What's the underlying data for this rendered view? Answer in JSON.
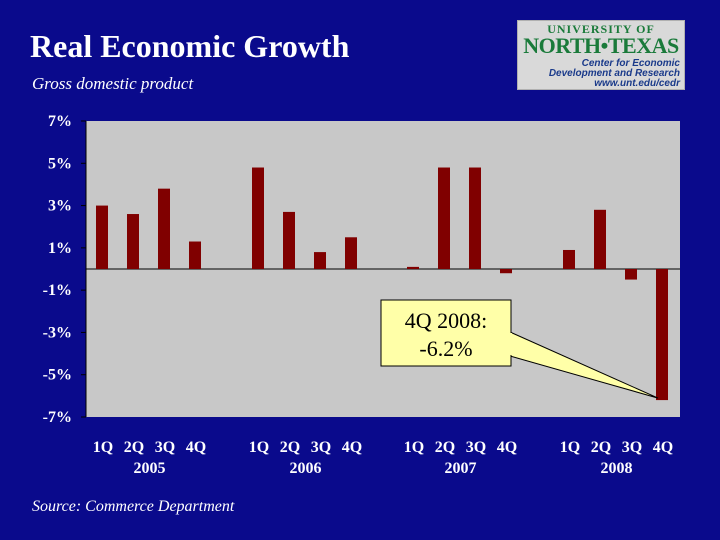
{
  "title": "Real Economic Growth",
  "subtitle": "Gross domestic product",
  "source": "Source: Commerce Department",
  "logo": {
    "line1": "UNIVERSITY OF",
    "line2": "NORTH•TEXAS",
    "line3": "Center for Economic",
    "line4": "Development and Research",
    "line5": "www.unt.edu/cedr"
  },
  "colors": {
    "background": "#0a0a8c",
    "plot_area": "#c8c8c8",
    "bar": "#800000",
    "callout": "#ffffa8"
  },
  "annotation": {
    "line1": "4Q 2008:",
    "line2": "-6.2%"
  },
  "chart_data": {
    "type": "bar",
    "title": "Real Economic Growth",
    "subtitle": "Gross domestic product",
    "ylim": [
      -7,
      7
    ],
    "yticks": [
      7,
      5,
      3,
      1,
      -1,
      -3,
      -5,
      -7
    ],
    "ytick_labels": [
      "7%",
      "5%",
      "3%",
      "1%",
      "-1%",
      "-3%",
      "-5%",
      "-7%"
    ],
    "grid": false,
    "groups": [
      {
        "year": "2005",
        "quarters": [
          "1Q",
          "2Q",
          "3Q",
          "4Q"
        ],
        "values": [
          3.0,
          2.6,
          3.8,
          1.3
        ]
      },
      {
        "year": "2006",
        "quarters": [
          "1Q",
          "2Q",
          "3Q",
          "4Q"
        ],
        "values": [
          4.8,
          2.7,
          0.8,
          1.5
        ]
      },
      {
        "year": "2007",
        "quarters": [
          "1Q",
          "2Q",
          "3Q",
          "4Q"
        ],
        "values": [
          0.1,
          4.8,
          4.8,
          -0.2
        ]
      },
      {
        "year": "2008",
        "quarters": [
          "1Q",
          "2Q",
          "3Q",
          "4Q"
        ],
        "values": [
          0.9,
          2.8,
          -0.5,
          -6.2
        ]
      }
    ]
  }
}
